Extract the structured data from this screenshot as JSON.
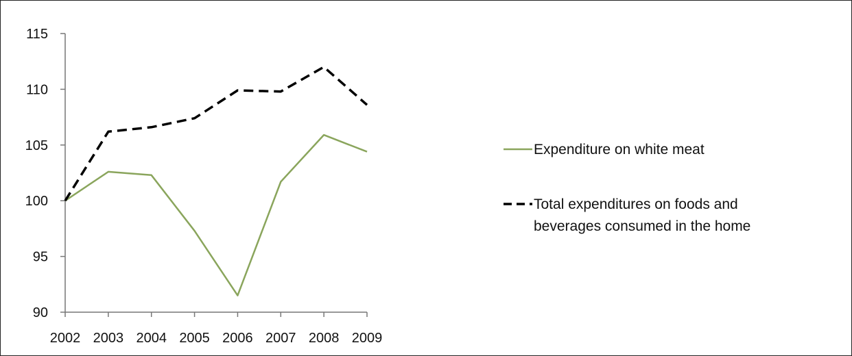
{
  "chart_data": {
    "type": "line",
    "title": "",
    "xlabel": "",
    "ylabel": "",
    "x": [
      "2002",
      "2003",
      "2004",
      "2005",
      "2006",
      "2007",
      "2008",
      "2009"
    ],
    "ylim": [
      90,
      115
    ],
    "yticks": [
      90,
      95,
      100,
      105,
      110,
      115
    ],
    "grid": false,
    "legend_position": "right",
    "series": [
      {
        "name": "Expenditure on white meat",
        "style": "solid",
        "color": "#8aa55c",
        "values": [
          100,
          102.6,
          102.3,
          97.3,
          91.5,
          101.7,
          105.9,
          104.4
        ]
      },
      {
        "name": "Total expenditures on foods and beverages consumed in the home",
        "style": "dashed",
        "color": "#000000",
        "values": [
          100,
          106.2,
          106.6,
          107.4,
          109.9,
          109.8,
          112.0,
          108.6
        ]
      }
    ]
  }
}
